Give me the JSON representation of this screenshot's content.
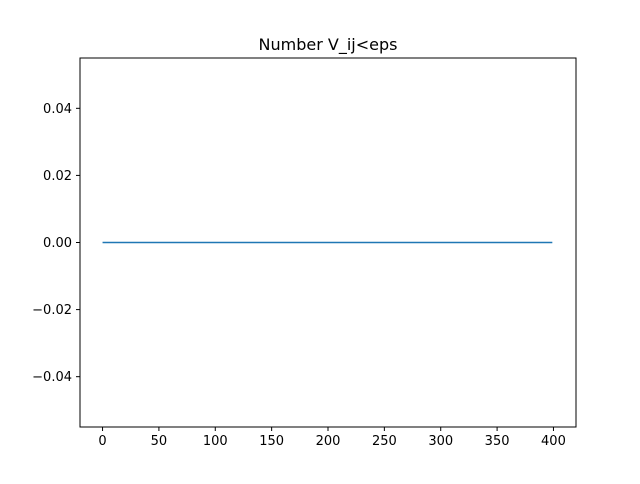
{
  "chart_data": {
    "type": "line",
    "title": "Number V_ij<eps",
    "xlabel": "",
    "ylabel": "",
    "xlim": [
      -20,
      420
    ],
    "ylim": [
      -0.055,
      0.055
    ],
    "x_ticks": [
      0,
      50,
      100,
      150,
      200,
      250,
      300,
      350,
      400
    ],
    "y_ticks": [
      -0.04,
      -0.02,
      0.0,
      0.02,
      0.04
    ],
    "x_tick_labels": [
      "0",
      "50",
      "100",
      "150",
      "200",
      "250",
      "300",
      "350",
      "400"
    ],
    "y_tick_labels": [
      "−0.04",
      "−0.02",
      "0.00",
      "0.02",
      "0.04"
    ],
    "grid": false,
    "series": [
      {
        "color": "#1f77b4",
        "x": [
          0,
          399
        ],
        "y": [
          0,
          0
        ]
      }
    ]
  }
}
